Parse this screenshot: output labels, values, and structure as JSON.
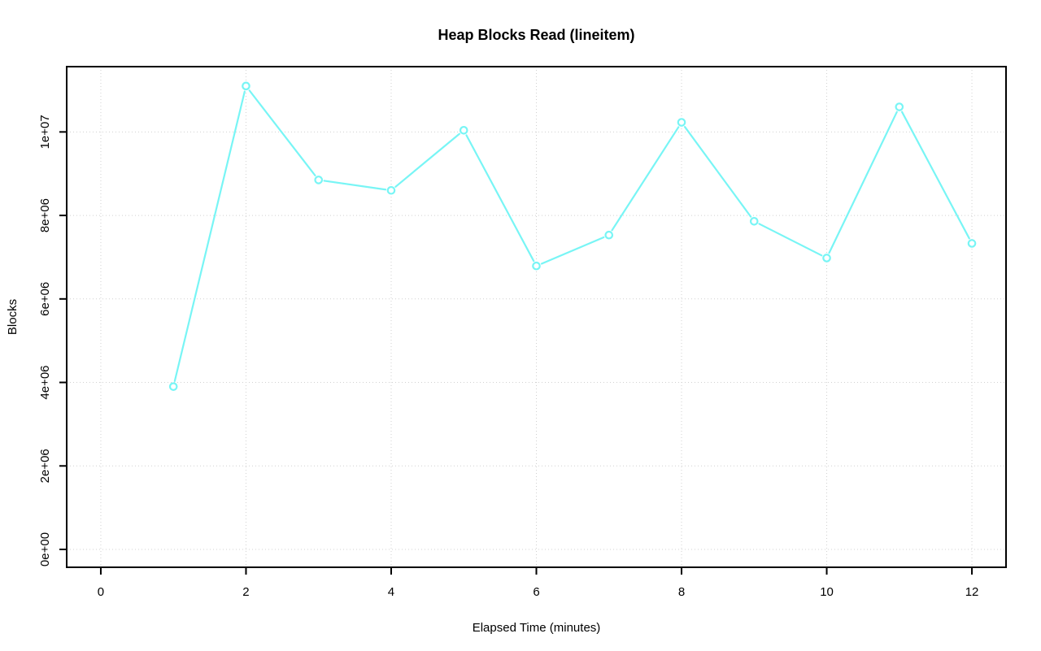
{
  "chart_data": {
    "type": "line",
    "title": "Heap Blocks Read (lineitem)",
    "xlabel": "Elapsed Time (minutes)",
    "ylabel": "Blocks",
    "x": [
      1,
      2,
      3,
      4,
      5,
      6,
      7,
      8,
      9,
      10,
      11,
      12
    ],
    "y": [
      3900000,
      11100000,
      8850000,
      8600000,
      10040000,
      6790000,
      7530000,
      10230000,
      7860000,
      6980000,
      10600000,
      7330000
    ],
    "x_ticks": [
      0,
      2,
      4,
      6,
      8,
      10,
      12
    ],
    "x_tick_labels": [
      "0",
      "2",
      "4",
      "6",
      "8",
      "10",
      "12"
    ],
    "y_ticks": [
      0,
      2000000,
      4000000,
      6000000,
      8000000,
      10000000
    ],
    "y_tick_labels": [
      "0e+00",
      "2e+06",
      "4e+06",
      "6e+06",
      "8e+06",
      "1e+07"
    ],
    "xlim": [
      -0.47,
      12.47
    ],
    "ylim": [
      -428000,
      11564000
    ],
    "grid": true,
    "legend_position": "none",
    "marker": "open-circle",
    "colors": {
      "series": "#78F5F5",
      "grid": "#D0D0D0",
      "axis": "#000000",
      "background": "#FFFFFF"
    }
  }
}
